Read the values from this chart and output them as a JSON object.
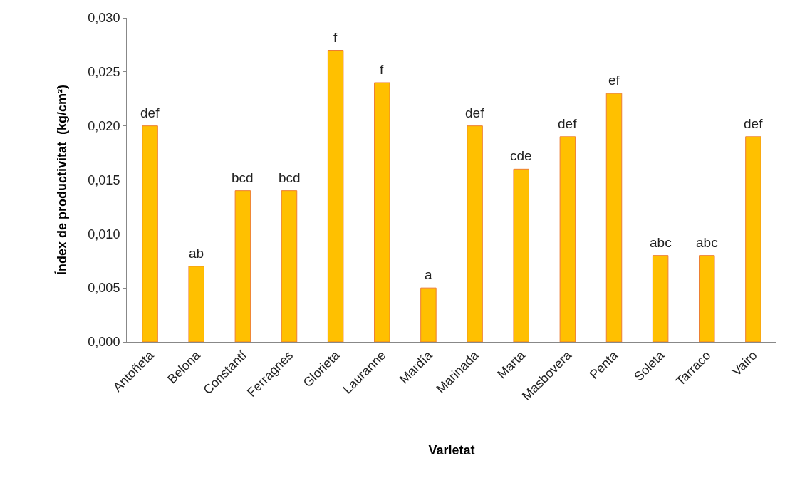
{
  "chart_data": {
    "type": "bar",
    "xlabel": "Varietat",
    "ylabel": "Índex de productivitat  (kg/cm²)",
    "categories": [
      "Antoñeta",
      "Belona",
      "Constantí",
      "Ferragnes",
      "Glorieta",
      "Lauranne",
      "Mardía",
      "Marinada",
      "Marta",
      "Masbovera",
      "Penta",
      "Soleta",
      "Tarraco",
      "Vairo"
    ],
    "values": [
      0.02,
      0.007,
      0.014,
      0.014,
      0.027,
      0.024,
      0.005,
      0.02,
      0.016,
      0.019,
      0.023,
      0.008,
      0.008,
      0.019
    ],
    "color": "#ffc000",
    "ylim": [
      0,
      0.03
    ],
    "yticks": [
      {
        "value": 0,
        "label": "0,000"
      },
      {
        "value": 0.005,
        "label": "0,005"
      },
      {
        "value": 0.01,
        "label": "0,010"
      },
      {
        "value": 0.015,
        "label": "0,015"
      },
      {
        "value": 0.02,
        "label": "0,020"
      },
      {
        "value": 0.025,
        "label": "0,025"
      },
      {
        "value": 0.03,
        "label": "0,030"
      }
    ],
    "annotations": [
      {
        "text": "def",
        "x": "Antoñeta",
        "y": 0.02
      },
      {
        "text": "ab",
        "x": "Belona",
        "y": 0.007
      },
      {
        "text": "bcd",
        "x": "Constantí",
        "y": 0.014
      },
      {
        "text": "bcd",
        "x": "Ferragnes",
        "y": 0.014
      },
      {
        "text": "f",
        "x": "Glorieta",
        "y": 0.027
      },
      {
        "text": "f",
        "x": "Lauranne",
        "y": 0.024
      },
      {
        "text": "a",
        "x": "Mardía",
        "y": 0.005
      },
      {
        "text": "def",
        "x": "Marinada",
        "y": 0.02
      },
      {
        "text": "cde",
        "x": "Marta",
        "y": 0.016
      },
      {
        "text": "def",
        "x": "Masbovera",
        "y": 0.019
      },
      {
        "text": "ef",
        "x": "Penta",
        "y": 0.023
      },
      {
        "text": "abc",
        "x": "Soleta",
        "y": 0.008
      },
      {
        "text": "abc",
        "x": "Tarraco",
        "y": 0.008
      },
      {
        "text": "def",
        "x": "Vairo",
        "y": 0.019
      }
    ]
  }
}
